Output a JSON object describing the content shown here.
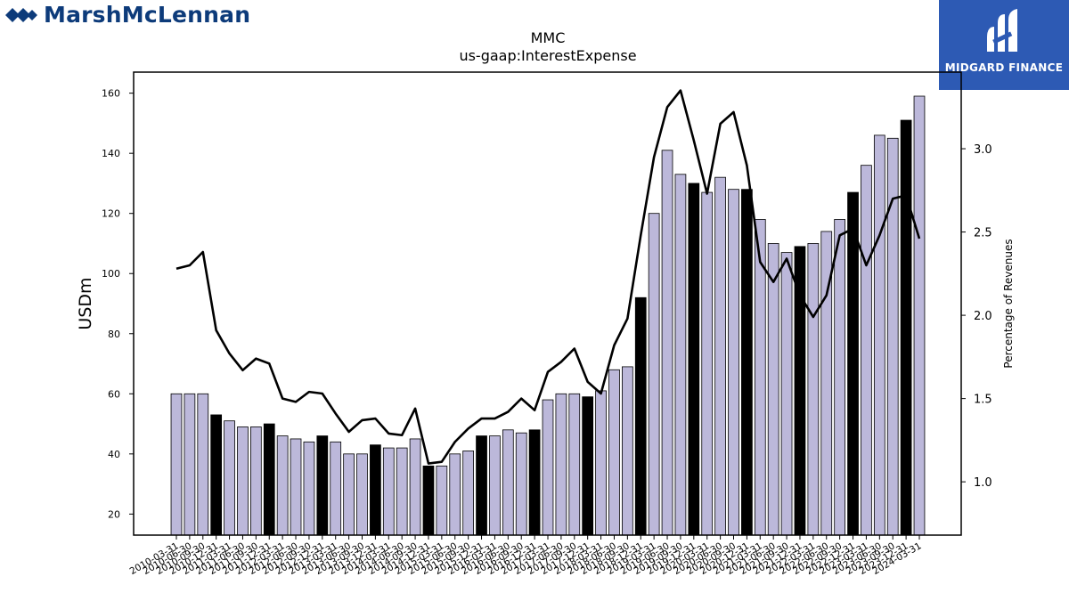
{
  "branding": {
    "left_logo_text": "MarshMcLennan",
    "right_logo_text": "MIDGARD FINANCE"
  },
  "colors": {
    "bar_normal": "#bcb8da",
    "bar_highlight": "#000000",
    "line": "#000000",
    "brand_blue": "#0d3b7a",
    "brand_right_bg": "#2d5ab4"
  },
  "chart_data": {
    "type": "bar",
    "title": "MMC",
    "subtitle": "us-gaap:InterestExpense",
    "ylabel": "USDm",
    "y2label": "Percentage of Revenues",
    "ylim": [
      13,
      167
    ],
    "y2lim": [
      0.68,
      3.46
    ],
    "yticks": [
      20,
      40,
      60,
      80,
      100,
      120,
      140,
      160
    ],
    "y2ticks": [
      "1.0",
      "1.5",
      "2.0",
      "2.5",
      "3.0"
    ],
    "categories": [
      "2010-03-31",
      "2010-06-30",
      "2010-09-30",
      "2010-12-31",
      "2011-03-31",
      "2011-06-30",
      "2011-09-30",
      "2011-12-31",
      "2012-03-31",
      "2012-06-30",
      "2012-09-30",
      "2012-12-31",
      "2013-03-31",
      "2013-06-30",
      "2013-09-30",
      "2013-12-31",
      "2014-03-31",
      "2014-06-30",
      "2014-09-30",
      "2014-12-31",
      "2015-03-31",
      "2015-06-30",
      "2015-09-30",
      "2015-12-31",
      "2016-03-31",
      "2016-06-30",
      "2016-09-30",
      "2016-12-31",
      "2017-03-31",
      "2017-06-30",
      "2017-09-30",
      "2017-12-31",
      "2018-03-31",
      "2018-06-30",
      "2018-09-30",
      "2018-12-31",
      "2019-03-31",
      "2019-06-30",
      "2019-09-30",
      "2019-12-31",
      "2020-03-31",
      "2020-06-30",
      "2020-09-30",
      "2020-12-31",
      "2021-03-31",
      "2021-06-30",
      "2021-09-30",
      "2021-12-31",
      "2022-03-31",
      "2022-06-30",
      "2022-09-30",
      "2022-12-31",
      "2023-03-31",
      "2023-06-30",
      "2023-09-30",
      "2023-12-31",
      "2024-03-31"
    ],
    "series": [
      {
        "kind": "bar",
        "axis": "left",
        "values": [
          60,
          60,
          60,
          53,
          51,
          49,
          49,
          50,
          46,
          45,
          44,
          46,
          44,
          40,
          40,
          43,
          42,
          42,
          45,
          36,
          36,
          40,
          41,
          46,
          46,
          48,
          47,
          48,
          58,
          60,
          60,
          59,
          61,
          68,
          69,
          92,
          120,
          141,
          133,
          130,
          127,
          132,
          128,
          128,
          118,
          110,
          107,
          109,
          110,
          114,
          118,
          127,
          136,
          146,
          145,
          151,
          159
        ],
        "highlight": [
          false,
          false,
          false,
          true,
          false,
          false,
          false,
          true,
          false,
          false,
          false,
          true,
          false,
          false,
          false,
          true,
          false,
          false,
          false,
          true,
          false,
          false,
          false,
          true,
          false,
          false,
          false,
          true,
          false,
          false,
          false,
          true,
          false,
          false,
          false,
          true,
          false,
          false,
          false,
          true,
          false,
          false,
          false,
          true,
          false,
          false,
          false,
          true,
          false,
          false,
          false,
          true,
          false,
          false,
          false,
          true,
          false
        ]
      },
      {
        "kind": "line",
        "axis": "right",
        "values": [
          2.28,
          2.3,
          2.38,
          1.91,
          1.77,
          1.67,
          1.74,
          1.71,
          1.5,
          1.48,
          1.54,
          1.53,
          1.41,
          1.3,
          1.37,
          1.38,
          1.29,
          1.28,
          1.44,
          1.11,
          1.12,
          1.24,
          1.32,
          1.38,
          1.38,
          1.42,
          1.5,
          1.43,
          1.66,
          1.72,
          1.8,
          1.6,
          1.53,
          1.82,
          1.98,
          2.48,
          2.95,
          3.25,
          3.35,
          3.05,
          2.73,
          3.15,
          3.22,
          2.9,
          2.32,
          2.2,
          2.34,
          2.12,
          1.99,
          2.12,
          2.48,
          2.52,
          2.3,
          2.48,
          2.7,
          2.72,
          2.46
        ]
      }
    ],
    "grid": false,
    "legend": "none"
  }
}
